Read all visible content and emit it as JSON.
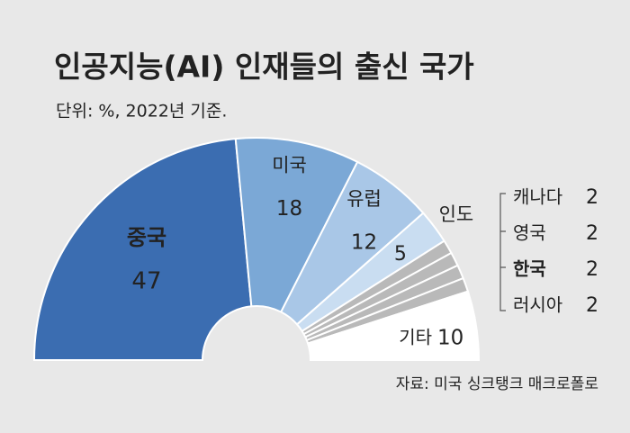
{
  "chart_data": {
    "type": "pie",
    "title": "인공지능(AI) 인재들의 출신 국가",
    "subtitle": "단위: %, 2022년 기준.",
    "source": "자료: 미국 싱크탱크 매크로폴로",
    "categories": [
      "중국",
      "미국",
      "유럽",
      "인도",
      "캐나다",
      "영국",
      "한국",
      "러시아",
      "기타"
    ],
    "values": [
      47,
      18,
      12,
      5,
      2,
      2,
      2,
      2,
      10
    ],
    "colors": [
      "#3b6db1",
      "#7ba8d6",
      "#a9c7e7",
      "#c9ddf1",
      "#b9b9b9",
      "#b9b9b9",
      "#b9b9b9",
      "#b9b9b9",
      "#ffffff"
    ]
  }
}
